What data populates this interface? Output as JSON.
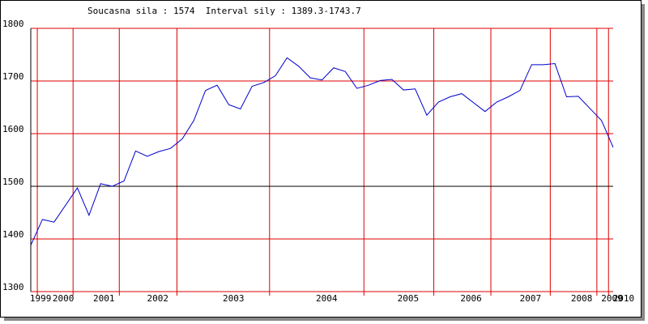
{
  "chart_data": {
    "type": "line",
    "title": "Soucasna sila : 1574  Interval sily : 1389.3-1743.7",
    "x": [
      0,
      1,
      2,
      4,
      5,
      6,
      7,
      8,
      9,
      10,
      11,
      12,
      13,
      14,
      15,
      16,
      17,
      18,
      19,
      20,
      21,
      22,
      23,
      24,
      25,
      26,
      27,
      28,
      29,
      30,
      31,
      32,
      33,
      34,
      35,
      36,
      37,
      39,
      40,
      41,
      42,
      43,
      44,
      45,
      46,
      47,
      48,
      49,
      50
    ],
    "series": [
      {
        "color": "#0000cc",
        "values": [
          1388,
          1437,
          1432,
          1497,
          1445,
          1505,
          1500,
          1510,
          1567,
          1557,
          1566,
          1572,
          1590,
          1625,
          1682,
          1692,
          1655,
          1647,
          1690,
          1697,
          1710,
          1744,
          1728,
          1706,
          1702,
          1725,
          1718,
          1686,
          1692,
          1701,
          1703,
          1683,
          1685,
          1635,
          1660,
          1670,
          1676,
          1642,
          1660,
          1670,
          1682,
          1731,
          1731,
          1733,
          1670,
          1671,
          1648,
          1625,
          1574
        ]
      }
    ],
    "xlim": [
      0,
      50
    ],
    "xticks": [
      {
        "value": 0.84,
        "label": "1999"
      },
      {
        "value": 2.79,
        "label": "2000"
      },
      {
        "value": 6.28,
        "label": "2001"
      },
      {
        "value": 10.9,
        "label": "2002"
      },
      {
        "value": 17.4,
        "label": "2003"
      },
      {
        "value": 25.4,
        "label": "2004"
      },
      {
        "value": 32.4,
        "label": "2005"
      },
      {
        "value": 37.8,
        "label": "2006"
      },
      {
        "value": 42.9,
        "label": "2007"
      },
      {
        "value": 47.3,
        "label": "2008"
      },
      {
        "value": 49.9,
        "label": "2009"
      },
      {
        "value": 50.9,
        "label": "2010"
      }
    ],
    "year_lines": [
      0.56,
      3.63,
      7.6,
      12.55,
      20.5,
      28.6,
      34.6,
      39.5,
      44.6,
      48.6,
      49.6
    ],
    "ylim": [
      1300,
      1800
    ],
    "yticks": [
      1300,
      1400,
      1500,
      1600,
      1700,
      1800
    ],
    "reference_line": 1500,
    "grid": true,
    "grid_color": "#dd0000"
  }
}
